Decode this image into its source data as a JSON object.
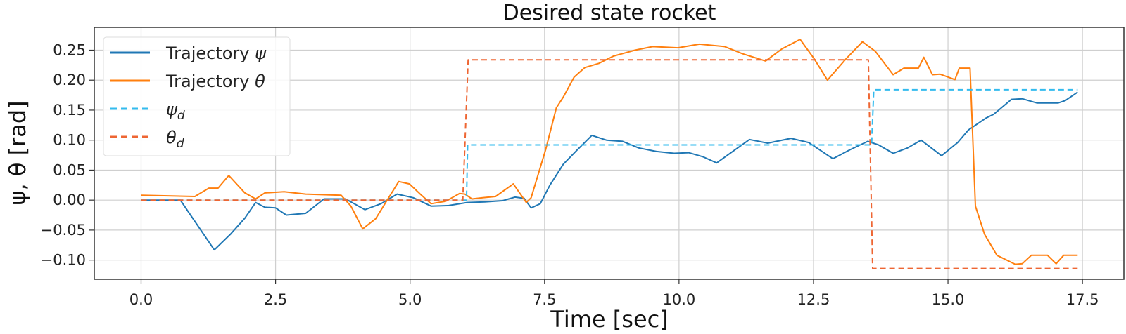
{
  "chart_data": {
    "type": "line",
    "title": "Desired state rocket",
    "xlabel": "Time [sec]",
    "ylabel": "ψ, θ [rad]",
    "xlim": [
      -0.87,
      18.27
    ],
    "ylim": [
      -0.132,
      0.288
    ],
    "xticks": [
      0,
      2.5,
      5,
      7.5,
      10,
      12.5,
      15,
      17.5
    ],
    "xtick_labels": [
      "0.0",
      "2.5",
      "5.0",
      "7.5",
      "10.0",
      "12.5",
      "15.0",
      "17.5"
    ],
    "yticks": [
      -0.1,
      -0.05,
      0,
      0.05,
      0.1,
      0.15,
      0.2,
      0.25
    ],
    "ytick_labels": [
      "−0.10",
      "−0.05",
      "0.00",
      "0.05",
      "0.10",
      "0.15",
      "0.20",
      "0.25"
    ],
    "grid": true,
    "legend_placement": "upper-left",
    "series": [
      {
        "name": "Trajectory ψ",
        "legend_main": "Trajectory ",
        "legend_sym": "ψ",
        "legend_sub": "",
        "color": "#1f77b4",
        "style": "solid",
        "x": [
          0,
          0.73,
          1.36,
          1.66,
          1.93,
          2.13,
          2.3,
          2.5,
          2.7,
          3.06,
          3.4,
          3.8,
          4.16,
          4.46,
          4.76,
          5.06,
          5.39,
          5.72,
          6.06,
          6.39,
          6.72,
          6.95,
          7.12,
          7.25,
          7.42,
          7.6,
          7.85,
          8.11,
          8.38,
          8.65,
          8.95,
          9.25,
          9.58,
          9.91,
          10.18,
          10.45,
          10.7,
          10.98,
          11.31,
          11.65,
          12.08,
          12.41,
          12.86,
          13.18,
          13.51,
          13.71,
          13.98,
          14.25,
          14.5,
          14.88,
          15.18,
          15.38,
          15.71,
          15.85,
          16.18,
          16.38,
          16.65,
          17.05,
          17.18,
          17.41
        ],
        "y": [
          0.0,
          0.0,
          -0.083,
          -0.057,
          -0.03,
          -0.004,
          -0.012,
          -0.013,
          -0.025,
          -0.022,
          0.002,
          0.002,
          -0.016,
          -0.006,
          0.01,
          0.004,
          -0.01,
          -0.009,
          -0.004,
          -0.003,
          -0.001,
          0.005,
          0.003,
          -0.013,
          -0.006,
          0.025,
          0.06,
          0.084,
          0.108,
          0.1,
          0.098,
          0.087,
          0.081,
          0.078,
          0.079,
          0.072,
          0.062,
          0.08,
          0.101,
          0.095,
          0.103,
          0.096,
          0.069,
          0.084,
          0.098,
          0.092,
          0.078,
          0.087,
          0.1,
          0.074,
          0.096,
          0.117,
          0.137,
          0.143,
          0.168,
          0.169,
          0.162,
          0.162,
          0.166,
          0.18
        ]
      },
      {
        "name": "Trajectory θ",
        "legend_main": "Trajectory ",
        "legend_sym": "θ",
        "legend_sub": "",
        "color": "#ff7f0e",
        "style": "solid",
        "x": [
          0,
          1.0,
          1.26,
          1.43,
          1.63,
          1.93,
          2.13,
          2.3,
          2.66,
          3.06,
          3.72,
          3.9,
          4.12,
          4.36,
          4.56,
          4.79,
          4.99,
          5.19,
          5.39,
          5.66,
          5.92,
          6.02,
          6.15,
          6.35,
          6.59,
          6.92,
          7.16,
          7.25,
          7.52,
          7.72,
          7.85,
          8.05,
          8.25,
          8.51,
          8.78,
          9.18,
          9.51,
          9.98,
          10.38,
          10.85,
          11.18,
          11.61,
          11.91,
          12.25,
          12.51,
          12.76,
          13.11,
          13.41,
          13.65,
          13.98,
          14.18,
          14.45,
          14.55,
          14.71,
          14.85,
          15.13,
          15.21,
          15.41,
          15.51,
          15.68,
          15.91,
          16.25,
          16.38,
          16.55,
          16.85,
          17.01,
          17.15,
          17.41
        ],
        "y": [
          0.008,
          0.006,
          0.02,
          0.02,
          0.041,
          0.012,
          0.002,
          0.012,
          0.014,
          0.01,
          0.008,
          -0.01,
          -0.048,
          -0.031,
          -0.002,
          0.031,
          0.027,
          0.01,
          -0.006,
          -0.002,
          0.011,
          0.01,
          0.002,
          0.004,
          0.006,
          0.027,
          -0.004,
          0.004,
          0.084,
          0.154,
          0.172,
          0.205,
          0.221,
          0.228,
          0.24,
          0.25,
          0.256,
          0.254,
          0.26,
          0.256,
          0.244,
          0.232,
          0.252,
          0.268,
          0.236,
          0.2,
          0.236,
          0.264,
          0.248,
          0.209,
          0.22,
          0.22,
          0.238,
          0.209,
          0.21,
          0.201,
          0.22,
          0.22,
          -0.01,
          -0.057,
          -0.092,
          -0.107,
          -0.106,
          -0.092,
          -0.092,
          -0.106,
          -0.092,
          -0.092
        ]
      },
      {
        "name": "ψd",
        "legend_main": "",
        "legend_sym": "ψ",
        "legend_sub": "d",
        "color": "#33bbee",
        "style": "dashed",
        "x": [
          0,
          6.05,
          6.07,
          13.58,
          13.62,
          17.41
        ],
        "y": [
          0,
          0,
          0.092,
          0.092,
          0.184,
          0.184
        ]
      },
      {
        "name": "θd",
        "legend_main": "",
        "legend_sym": "θ",
        "legend_sub": "d",
        "color": "#ee6633",
        "style": "dashed",
        "x": [
          0,
          5.98,
          6.08,
          13.52,
          13.6,
          17.41
        ],
        "y": [
          0,
          0,
          0.234,
          0.234,
          -0.114,
          -0.114
        ]
      }
    ]
  }
}
